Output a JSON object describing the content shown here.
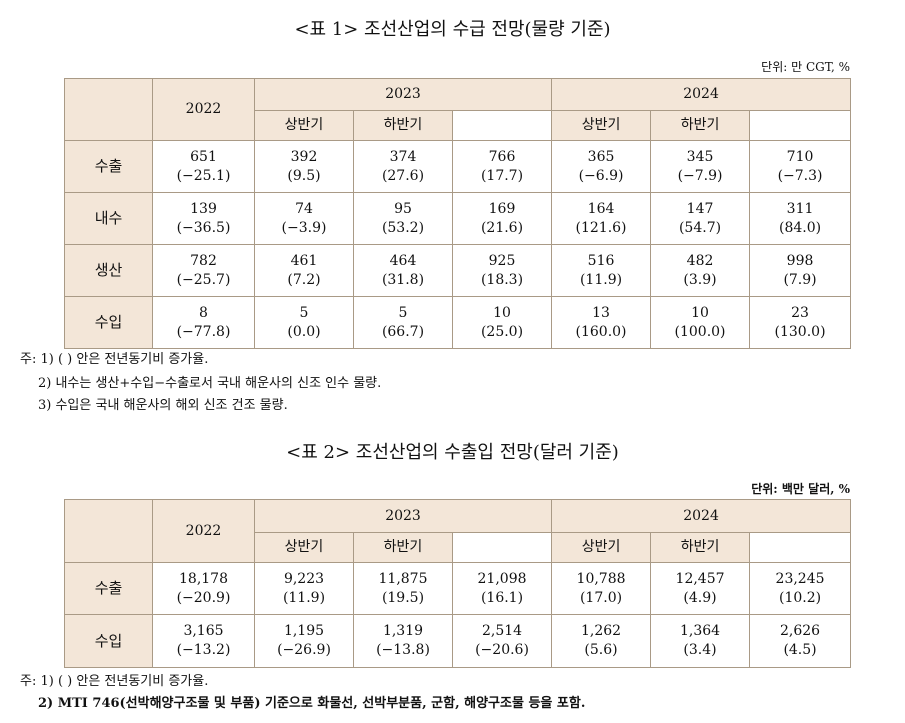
{
  "table1": {
    "title": "<표 1> 조선산업의 수급 전망(물량 기준)",
    "unit": "단위: 만 CGT, %",
    "header": {
      "y2022": "2022",
      "y2023": "2023",
      "y2024": "2024",
      "h1_2023": "상반기",
      "h2_2023": "하반기",
      "h1_2024": "상반기",
      "h2_2024": "하반기"
    },
    "rows": [
      {
        "label": "수출",
        "cells": [
          [
            "651",
            "(−25.1)"
          ],
          [
            "392",
            "(9.5)"
          ],
          [
            "374",
            "(27.6)"
          ],
          [
            "766",
            "(17.7)"
          ],
          [
            "365",
            "(−6.9)"
          ],
          [
            "345",
            "(−7.9)"
          ],
          [
            "710",
            "(−7.3)"
          ]
        ]
      },
      {
        "label": "내수",
        "cells": [
          [
            "139",
            "(−36.5)"
          ],
          [
            "74",
            "(−3.9)"
          ],
          [
            "95",
            "(53.2)"
          ],
          [
            "169",
            "(21.6)"
          ],
          [
            "164",
            "(121.6)"
          ],
          [
            "147",
            "(54.7)"
          ],
          [
            "311",
            "(84.0)"
          ]
        ]
      },
      {
        "label": "생산",
        "cells": [
          [
            "782",
            "(−25.7)"
          ],
          [
            "461",
            "(7.2)"
          ],
          [
            "464",
            "(31.8)"
          ],
          [
            "925",
            "(18.3)"
          ],
          [
            "516",
            "(11.9)"
          ],
          [
            "482",
            "(3.9)"
          ],
          [
            "998",
            "(7.9)"
          ]
        ]
      },
      {
        "label": "수입",
        "cells": [
          [
            "8",
            "(−77.8)"
          ],
          [
            "5",
            "(0.0)"
          ],
          [
            "5",
            "(66.7)"
          ],
          [
            "10",
            "(25.0)"
          ],
          [
            "13",
            "(160.0)"
          ],
          [
            "10",
            "(100.0)"
          ],
          [
            "23",
            "(130.0)"
          ]
        ]
      }
    ],
    "notes": [
      "주: 1) (   ) 안은 전년동기비 증가율.",
      "2) 내수는 생산+수입−수출로서 국내 해운사의 신조 인수 물량.",
      "3) 수입은 국내 해운사의 해외 신조 건조 물량."
    ]
  },
  "table2": {
    "title": "<표 2> 조선산업의 수출입 전망(달러 기준)",
    "unit": "단위: 백만 달러, %",
    "header": {
      "y2022": "2022",
      "y2023": "2023",
      "y2024": "2024",
      "h1_2023": "상반기",
      "h2_2023": "하반기",
      "h1_2024": "상반기",
      "h2_2024": "하반기"
    },
    "rows": [
      {
        "label": "수출",
        "cells": [
          [
            "18,178",
            "(−20.9)"
          ],
          [
            "9,223",
            "(11.9)"
          ],
          [
            "11,875",
            "(19.5)"
          ],
          [
            "21,098",
            "(16.1)"
          ],
          [
            "10,788",
            "(17.0)"
          ],
          [
            "12,457",
            "(4.9)"
          ],
          [
            "23,245",
            "(10.2)"
          ]
        ]
      },
      {
        "label": "수입",
        "cells": [
          [
            "3,165",
            "(−13.2)"
          ],
          [
            "1,195",
            "(−26.9)"
          ],
          [
            "1,319",
            "(−13.8)"
          ],
          [
            "2,514",
            "(−20.6)"
          ],
          [
            "1,262",
            "(5.6)"
          ],
          [
            "1,364",
            "(3.4)"
          ],
          [
            "2,626",
            "(4.5)"
          ]
        ]
      }
    ],
    "notes": [
      "주: 1) (   ) 안은 전년동기비 증가율.",
      "2) MTI 746(선박해양구조물 및 부품) 기준으로 화물선, 선박부분품, 군함, 해양구조물 등을 포함."
    ]
  }
}
